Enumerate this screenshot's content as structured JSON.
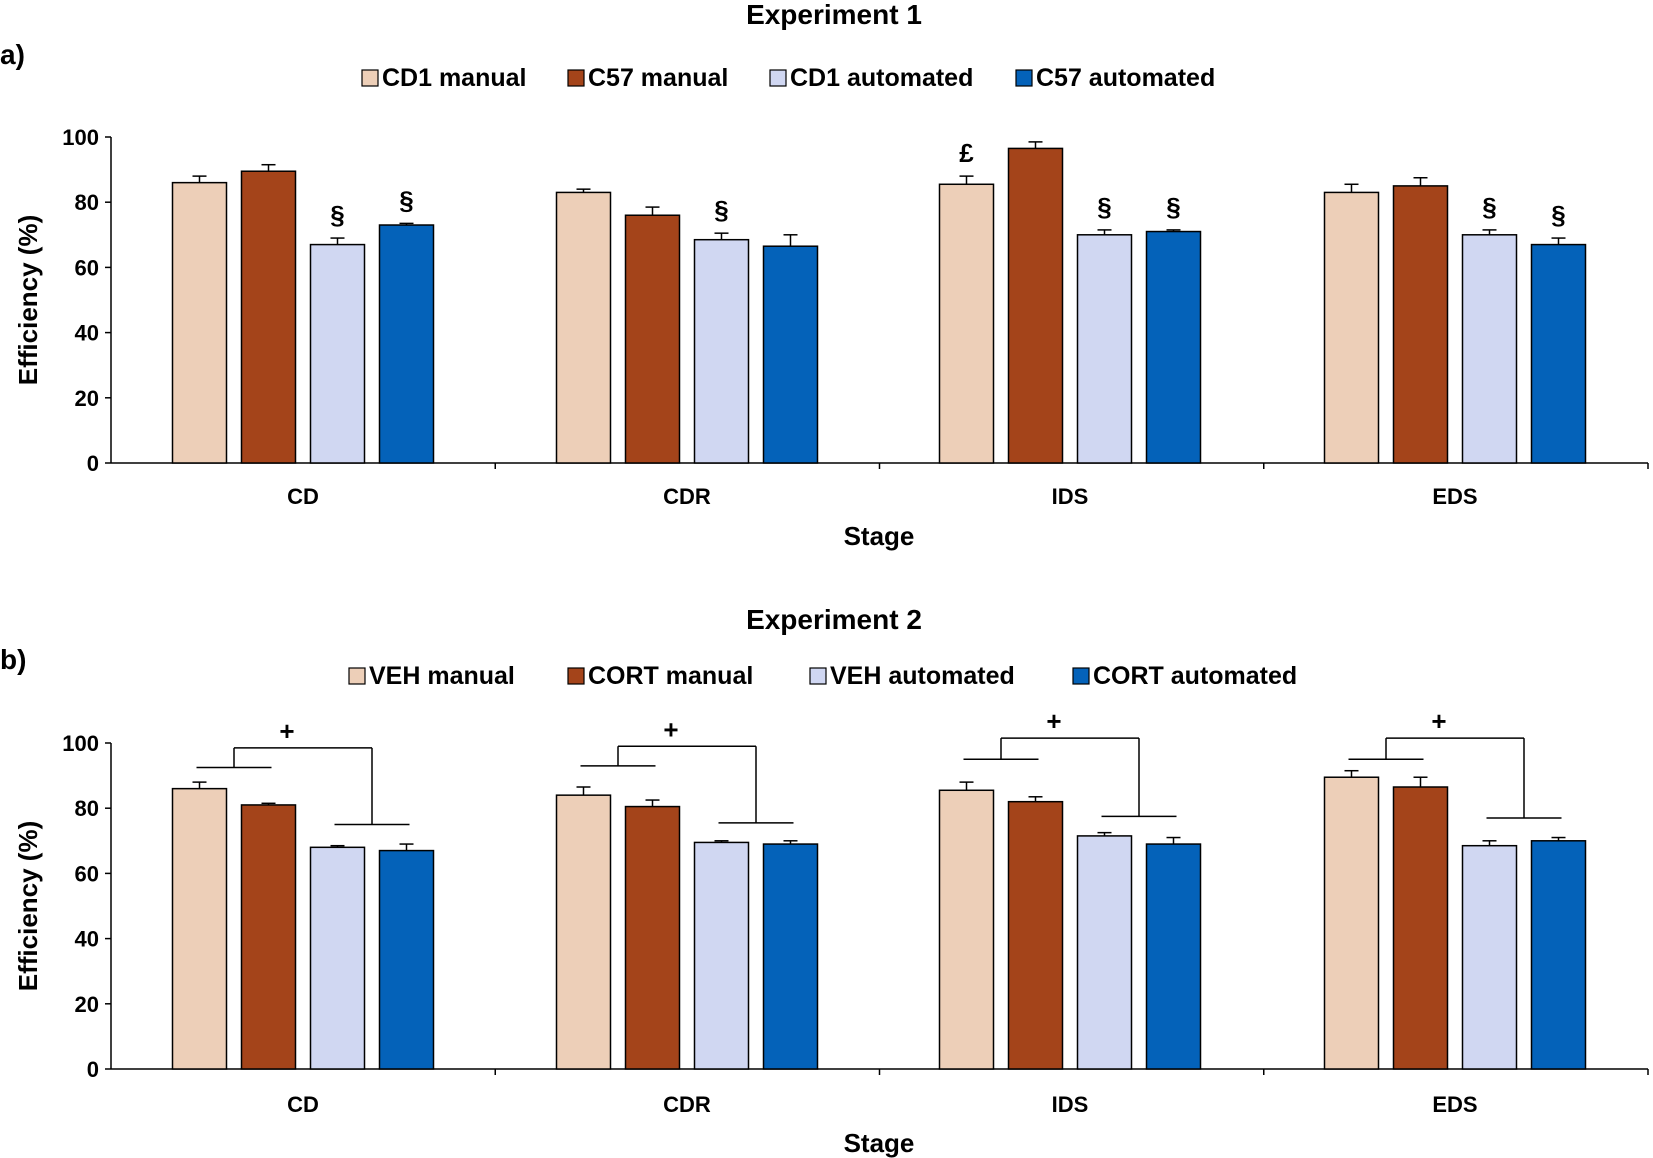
{
  "chart_data": [
    {
      "type": "bar",
      "panel_label": "a)",
      "title": "Experiment 1",
      "xlabel": "Stage",
      "ylabel": "Efficiency (%)",
      "ylim": [
        0,
        100
      ],
      "yticks": [
        "0",
        "20",
        "40",
        "60",
        "80",
        "100"
      ],
      "categories": [
        "CD",
        "CDR",
        "IDS",
        "EDS"
      ],
      "legend_position": "top-center",
      "series": [
        {
          "name": "CD1 manual",
          "color": "#EDCFB8",
          "values": [
            86,
            83,
            85.5,
            83
          ],
          "errors": [
            2,
            1,
            2.5,
            2.5
          ],
          "markers": [
            "",
            "",
            "£",
            ""
          ]
        },
        {
          "name": "C57 manual",
          "color": "#A4441A",
          "values": [
            89.5,
            76,
            96.5,
            85
          ],
          "errors": [
            2,
            2.5,
            2,
            2.5
          ],
          "markers": [
            "",
            "",
            "",
            ""
          ]
        },
        {
          "name": "CD1 automated",
          "color": "#D0D7F2",
          "values": [
            67,
            68.5,
            70,
            70
          ],
          "errors": [
            2,
            2,
            1.5,
            1.5
          ],
          "markers": [
            "§",
            "§",
            "§",
            "§"
          ]
        },
        {
          "name": "C57 automated",
          "color": "#0462B9",
          "values": [
            73,
            66.5,
            71,
            67
          ],
          "errors": [
            0.5,
            3.5,
            0.5,
            2
          ],
          "markers": [
            "§",
            "",
            "§",
            "§"
          ]
        }
      ],
      "annotations": []
    },
    {
      "type": "bar",
      "panel_label": "b)",
      "title": "Experiment 2",
      "xlabel": "Stage",
      "ylabel": "Efficiency (%)",
      "ylim": [
        0,
        100
      ],
      "yticks": [
        "0",
        "20",
        "40",
        "60",
        "80",
        "100"
      ],
      "categories": [
        "CD",
        "CDR",
        "IDS",
        "EDS"
      ],
      "legend_position": "top-center",
      "series": [
        {
          "name": "VEH manual",
          "color": "#EDCFB8",
          "values": [
            86,
            84,
            85.5,
            89.5
          ],
          "errors": [
            2,
            2.5,
            2.5,
            2
          ],
          "markers": [
            "",
            "",
            "",
            ""
          ]
        },
        {
          "name": "CORT manual",
          "color": "#A4441A",
          "values": [
            81,
            80.5,
            82,
            86.5
          ],
          "errors": [
            0.5,
            2,
            1.5,
            3
          ],
          "markers": [
            "",
            "",
            "",
            ""
          ]
        },
        {
          "name": "VEH automated",
          "color": "#D0D7F2",
          "values": [
            68,
            69.5,
            71.5,
            68.5
          ],
          "errors": [
            0.5,
            0.5,
            1,
            1.5
          ],
          "markers": [
            "",
            "",
            "",
            ""
          ]
        },
        {
          "name": "CORT automated",
          "color": "#0462B9",
          "values": [
            67,
            69,
            69,
            70
          ],
          "errors": [
            2,
            1,
            2,
            1
          ],
          "markers": [
            "",
            "",
            "",
            ""
          ]
        }
      ],
      "annotations": [
        {
          "category": "CD",
          "symbol": "+",
          "manual_bar_level": 92.5,
          "auto_bar_level": 75,
          "top_level": 98.5
        },
        {
          "category": "CDR",
          "symbol": "+",
          "manual_bar_level": 93,
          "auto_bar_level": 75.5,
          "top_level": 99
        },
        {
          "category": "IDS",
          "symbol": "+",
          "manual_bar_level": 95,
          "auto_bar_level": 77.5,
          "top_level": 101.5
        },
        {
          "category": "EDS",
          "symbol": "+",
          "manual_bar_level": 95,
          "auto_bar_level": 77,
          "top_level": 101.5
        }
      ]
    }
  ]
}
